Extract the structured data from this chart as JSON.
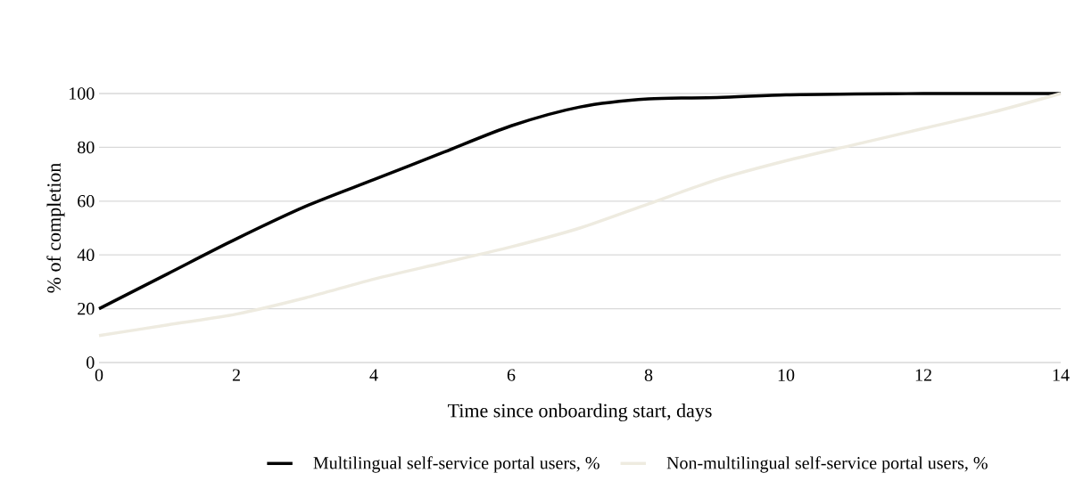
{
  "chart_data": {
    "type": "line",
    "xlabel": "Time since onboarding start, days",
    "ylabel": "% of completion",
    "x": [
      0,
      1,
      2,
      3,
      4,
      5,
      6,
      7,
      8,
      9,
      10,
      11,
      12,
      13,
      14
    ],
    "series": [
      {
        "name": "Multilingual self-service portal users, %",
        "color": "#000000",
        "values": [
          20,
          33,
          46,
          58,
          68,
          78,
          88,
          95,
          98,
          98.5,
          99.5,
          99.8,
          100,
          100,
          100
        ]
      },
      {
        "name": "Non-multilingual self-service portal users, %",
        "color": "#eeebe0",
        "values": [
          10,
          14,
          18,
          24,
          31,
          37,
          43,
          50,
          59,
          68,
          75,
          81,
          87,
          93,
          100
        ]
      }
    ],
    "xlim": [
      0,
      14
    ],
    "xticks": [
      0,
      2,
      4,
      6,
      8,
      10,
      12,
      14
    ],
    "ylim": [
      0,
      100
    ],
    "yticks": [
      0,
      20,
      40,
      60,
      80,
      100
    ],
    "grid": "y",
    "legend": "bottom",
    "marker": "none",
    "line_style": "solid"
  }
}
